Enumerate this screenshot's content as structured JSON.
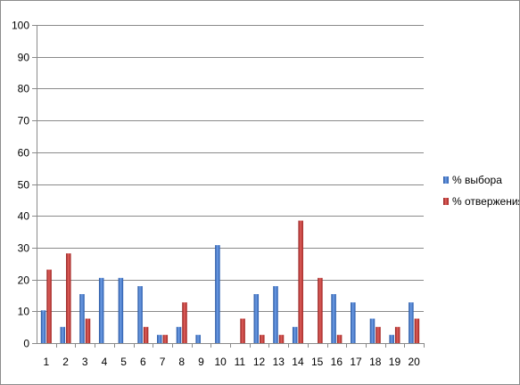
{
  "chart_data": {
    "type": "bar",
    "title": "",
    "xlabel": "",
    "ylabel": "",
    "ylim": [
      0,
      100
    ],
    "yticks": [
      0,
      10,
      20,
      30,
      40,
      50,
      60,
      70,
      80,
      90,
      100
    ],
    "grid": true,
    "legend_position": "right",
    "categories": [
      "1",
      "2",
      "3",
      "4",
      "5",
      "6",
      "7",
      "8",
      "9",
      "10",
      "11",
      "12",
      "13",
      "14",
      "15",
      "16",
      "17",
      "18",
      "19",
      "20"
    ],
    "series": [
      {
        "name": "% выбора",
        "color": "#3a6fc4",
        "values": [
          10.3,
          5.1,
          15.4,
          20.5,
          20.5,
          17.9,
          2.6,
          5.1,
          2.6,
          30.8,
          0,
          15.4,
          17.9,
          5.1,
          0,
          15.4,
          12.8,
          7.7,
          2.6,
          12.8
        ]
      },
      {
        "name": "% отвержения",
        "color": "#c0302e",
        "values": [
          23.1,
          28.2,
          7.7,
          0,
          0,
          5.1,
          2.6,
          12.8,
          0,
          0,
          7.7,
          2.6,
          2.6,
          38.5,
          20.5,
          2.6,
          0,
          5.1,
          5.1,
          7.7
        ]
      }
    ]
  }
}
